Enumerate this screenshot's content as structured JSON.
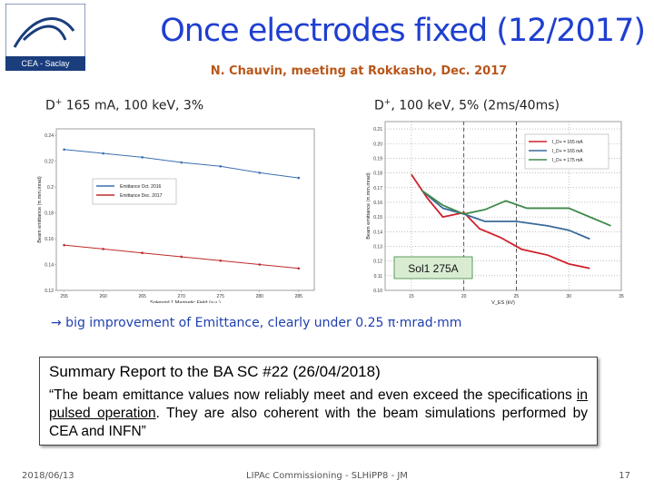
{
  "logo": {
    "text": "CEA - Saclay"
  },
  "header": {
    "title": "Once electrodes fixed (12/2017)",
    "subtitle": "N. Chauvin, meeting at Rokkasho, Dec. 2017"
  },
  "captions": [
    {
      "base": "D",
      "sup": "+",
      "rest": " 165 mA, 100 keV, 3%"
    },
    {
      "base": "D",
      "sup": "+",
      "rest": ", 100 keV, 5% (2ms/40ms)"
    }
  ],
  "chart_data": [
    {
      "type": "line",
      "xlabel": "Solenoid 1 Magnetic Field (a.u.)",
      "ylabel": "Beam emittance (π.mm.mrad)",
      "xlim": [
        254,
        287
      ],
      "xticks": [
        255,
        260,
        265,
        270,
        275,
        280,
        285
      ],
      "ylim": [
        0.12,
        0.245
      ],
      "yticks": [
        0.12,
        0.14,
        0.16,
        0.18,
        0.2,
        0.22,
        0.24
      ],
      "grid": false,
      "markers": true,
      "legend": "center-left",
      "series": [
        {
          "name": "Emittance Oct. 2016",
          "color": "#3b6fb0",
          "x": [
            255,
            260,
            265,
            270,
            275,
            280,
            285
          ],
          "values": [
            0.229,
            0.226,
            0.223,
            0.219,
            0.216,
            0.211,
            0.207
          ]
        },
        {
          "name": "Emittance Dec. 2017",
          "color": "#c0292b",
          "x": [
            255,
            260,
            265,
            270,
            275,
            280,
            285
          ],
          "values": [
            0.155,
            0.152,
            0.149,
            0.146,
            0.143,
            0.14,
            0.137
          ]
        }
      ]
    },
    {
      "type": "line",
      "xlabel": "V_ES (kV)",
      "ylabel": "Beam emittance (π.mm.mrad)",
      "xlim": [
        12.5,
        35
      ],
      "xticks": [
        15,
        20,
        25,
        30,
        35
      ],
      "ylim": [
        0.1,
        0.215
      ],
      "yticks": [
        {
          "value": 0.1,
          "label": "0.10"
        },
        0.11,
        0.12,
        0.13,
        0.14,
        0.15,
        0.16,
        0.17,
        0.18,
        0.19,
        {
          "value": 0.2,
          "label": "0.20"
        },
        0.21
      ],
      "grid": true,
      "markers": false,
      "legend": "upper-right",
      "vlines": [
        20,
        25
      ],
      "annotation": "Sol1 275A",
      "series": [
        {
          "name": "I_D+ = 165 mA",
          "color": "#d0202a",
          "x": [
            15,
            16.5,
            18,
            20,
            21.5,
            23.5,
            25.5,
            28,
            30,
            32
          ],
          "values": [
            0.179,
            0.163,
            0.15,
            0.153,
            0.142,
            0.136,
            0.128,
            0.124,
            0.118,
            0.115
          ]
        },
        {
          "name": "I_D+ = 165 mA ",
          "color": "#3a6a9a",
          "x": [
            16,
            18,
            20,
            22,
            25,
            28,
            30,
            32
          ],
          "values": [
            0.168,
            0.156,
            0.152,
            0.147,
            0.147,
            0.144,
            0.141,
            0.135
          ]
        },
        {
          "name": "I_D+ = 175 mA",
          "color": "#3f8a4a",
          "x": [
            16,
            18,
            20,
            22,
            24,
            26,
            28,
            30,
            32,
            34
          ],
          "values": [
            0.168,
            0.158,
            0.152,
            0.155,
            0.161,
            0.156,
            0.156,
            0.156,
            0.15,
            0.144
          ]
        }
      ]
    }
  ],
  "conclusion": "→ big improvement of Emittance, clearly under 0.25 π·mrad·mm",
  "summary": {
    "title": "Summary Report to the BA SC #22 (26/04/2018)",
    "quote": [
      "“The beam emittance values now reliably meet and even exceed the specifications ",
      "in pulsed operation",
      ". They are also coherent with the beam simulations performed by CEA and INFN”"
    ]
  },
  "footer": {
    "date": "2018/06/13",
    "center": "LIPAc Commissioning - SLHiPP8 - JM",
    "page": "17"
  }
}
